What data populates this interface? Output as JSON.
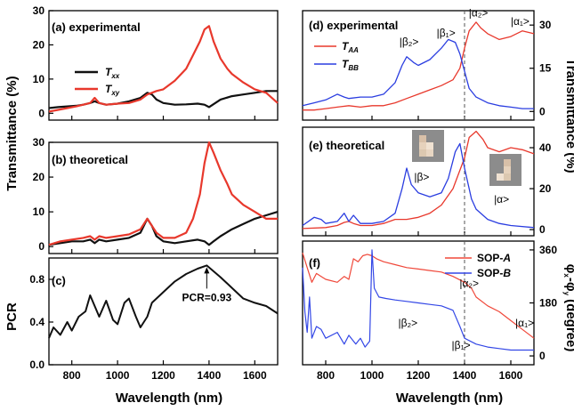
{
  "colors": {
    "black": "#111111",
    "red": "#e8382c",
    "blue": "#2a3de0",
    "thin_red": "#f0483a",
    "thin_blue": "#3347e6",
    "dash": "#555555",
    "inset_bg": "#8c8c8c"
  },
  "shared": {
    "x_axis_title": "Wavelength (nm)",
    "left_y_title": "Transmittance (%)",
    "right_y_title": "Transmittance (%)",
    "pcr_y_title": "PCR",
    "phase_y_title": "φ_x-φ_y (degree)"
  },
  "chart_data": [
    {
      "panel": "a",
      "type": "line",
      "title": "(a) experimental",
      "xlim": [
        700,
        1700
      ],
      "ylim": [
        -2,
        30
      ],
      "yticks": [
        0,
        10,
        20,
        30
      ],
      "series": [
        {
          "name": "T_xx",
          "color_key": "black",
          "x": [
            700,
            740,
            780,
            820,
            850,
            880,
            900,
            920,
            950,
            1000,
            1050,
            1100,
            1130,
            1150,
            1170,
            1200,
            1250,
            1300,
            1350,
            1380,
            1400,
            1450,
            1500,
            1550,
            1600,
            1650,
            1700
          ],
          "y": [
            1.5,
            1.8,
            2.0,
            2.2,
            2.5,
            3.0,
            3.5,
            3.0,
            2.5,
            2.8,
            3.5,
            4.5,
            6.0,
            5.5,
            4.0,
            3.0,
            2.5,
            2.6,
            2.8,
            2.5,
            1.8,
            4.0,
            5.0,
            5.5,
            6.0,
            6.5,
            6.5
          ]
        },
        {
          "name": "T_xy",
          "color_key": "red",
          "x": [
            700,
            740,
            780,
            820,
            850,
            880,
            900,
            920,
            950,
            1000,
            1050,
            1100,
            1130,
            1150,
            1170,
            1200,
            1250,
            1300,
            1330,
            1360,
            1380,
            1400,
            1420,
            1450,
            1480,
            1500,
            1550,
            1600,
            1650,
            1700
          ],
          "y": [
            0.5,
            1.0,
            1.5,
            2.0,
            2.5,
            3.0,
            4.5,
            3.0,
            2.5,
            2.8,
            3.0,
            4.0,
            5.5,
            6.0,
            6.5,
            7.0,
            9.5,
            13.0,
            17.0,
            21.0,
            24.5,
            25.5,
            21.0,
            16.0,
            13.0,
            11.5,
            9.0,
            7.0,
            6.0,
            3.0
          ]
        }
      ],
      "legend": [
        "T_xx",
        "T_xy"
      ]
    },
    {
      "panel": "b",
      "type": "line",
      "title": "(b) theoretical",
      "xlim": [
        700,
        1700
      ],
      "ylim": [
        -2,
        30
      ],
      "yticks": [
        0,
        10,
        20,
        30
      ],
      "series": [
        {
          "name": "T_xx",
          "color_key": "black",
          "x": [
            700,
            750,
            800,
            850,
            880,
            900,
            920,
            950,
            1000,
            1050,
            1100,
            1130,
            1150,
            1170,
            1200,
            1250,
            1300,
            1350,
            1380,
            1400,
            1420,
            1450,
            1500,
            1550,
            1600,
            1650,
            1700
          ],
          "y": [
            0.5,
            1.0,
            1.5,
            1.5,
            2.0,
            1.0,
            2.0,
            1.5,
            2.0,
            2.5,
            4.0,
            8.0,
            6.0,
            3.0,
            1.5,
            1.0,
            1.5,
            2.0,
            1.5,
            0.5,
            1.5,
            3.0,
            5.0,
            6.5,
            8.0,
            9.0,
            10.0
          ]
        },
        {
          "name": "T_xy",
          "color_key": "red",
          "x": [
            700,
            750,
            800,
            850,
            880,
            900,
            920,
            950,
            1000,
            1050,
            1100,
            1130,
            1150,
            1170,
            1200,
            1250,
            1300,
            1330,
            1360,
            1380,
            1400,
            1420,
            1450,
            1480,
            1500,
            1550,
            1600,
            1650,
            1700
          ],
          "y": [
            0.5,
            1.5,
            2.0,
            2.5,
            3.0,
            2.0,
            3.0,
            2.5,
            3.0,
            3.5,
            5.0,
            8.0,
            6.0,
            4.0,
            2.5,
            2.5,
            4.0,
            8.0,
            15.0,
            24.0,
            30.0,
            27.0,
            22.0,
            18.0,
            15.0,
            12.0,
            10.0,
            8.0,
            8.0
          ]
        }
      ]
    },
    {
      "panel": "c",
      "type": "line",
      "title": "(c)",
      "xlim": [
        700,
        1700
      ],
      "ylim": [
        0.0,
        1.0
      ],
      "yticks": [
        0.0,
        0.4,
        0.8
      ],
      "annotation": {
        "text": "PCR=0.93",
        "x": 1390,
        "y": 0.93
      },
      "series": [
        {
          "name": "PCR",
          "color_key": "black",
          "x": [
            700,
            720,
            750,
            780,
            800,
            830,
            860,
            880,
            900,
            920,
            950,
            980,
            1000,
            1030,
            1050,
            1080,
            1100,
            1130,
            1150,
            1200,
            1250,
            1300,
            1350,
            1390,
            1450,
            1500,
            1550,
            1600,
            1650,
            1700
          ],
          "y": [
            0.25,
            0.35,
            0.28,
            0.4,
            0.32,
            0.45,
            0.5,
            0.65,
            0.55,
            0.45,
            0.6,
            0.42,
            0.38,
            0.58,
            0.62,
            0.45,
            0.35,
            0.45,
            0.58,
            0.68,
            0.78,
            0.85,
            0.9,
            0.93,
            0.82,
            0.72,
            0.62,
            0.58,
            0.55,
            0.48
          ]
        }
      ]
    },
    {
      "panel": "d",
      "type": "line",
      "title": "(d) experimental",
      "xlim": [
        700,
        1700
      ],
      "ylim": [
        -3,
        35
      ],
      "yticks": [
        0,
        15,
        30
      ],
      "series": [
        {
          "name": "T_AA",
          "color_key": "red",
          "x": [
            700,
            750,
            800,
            850,
            900,
            950,
            1000,
            1050,
            1100,
            1150,
            1200,
            1250,
            1300,
            1350,
            1380,
            1400,
            1420,
            1450,
            1470,
            1500,
            1550,
            1600,
            1650,
            1700
          ],
          "y": [
            0.5,
            0.5,
            1.0,
            1.5,
            2.0,
            1.5,
            2.0,
            2.0,
            3.0,
            4.5,
            6.0,
            7.5,
            9.0,
            11.0,
            15.0,
            22.0,
            28.0,
            31.0,
            29.0,
            27.0,
            25.0,
            26.0,
            28.0,
            27.0
          ]
        },
        {
          "name": "T_BB",
          "color_key": "blue",
          "x": [
            700,
            750,
            800,
            850,
            880,
            900,
            950,
            1000,
            1050,
            1100,
            1130,
            1150,
            1180,
            1200,
            1250,
            1300,
            1330,
            1360,
            1380,
            1400,
            1420,
            1450,
            1500,
            1550,
            1600,
            1650,
            1700
          ],
          "y": [
            2.0,
            3.0,
            4.0,
            6.0,
            5.0,
            4.5,
            5.0,
            5.0,
            6.0,
            10.0,
            16.0,
            19.0,
            17.0,
            16.0,
            18.0,
            22.0,
            25.0,
            24.0,
            20.0,
            14.0,
            8.0,
            5.0,
            3.0,
            2.0,
            1.5,
            1.0,
            1.0
          ]
        }
      ],
      "legend": [
        "T_AA",
        "T_BB"
      ],
      "state_labels": [
        {
          "text": "|β₂>",
          "x": 1160,
          "y": 23
        },
        {
          "text": "|β₁>",
          "x": 1320,
          "y": 26
        },
        {
          "text": "|α₂>",
          "x": 1460,
          "y": 33
        },
        {
          "text": "|α₁>",
          "x": 1640,
          "y": 30
        }
      ],
      "vline_x": 1400
    },
    {
      "panel": "e",
      "type": "line",
      "title": "(e) theoretical",
      "xlim": [
        700,
        1700
      ],
      "ylim": [
        -3,
        50
      ],
      "yticks": [
        0,
        20,
        40
      ],
      "series": [
        {
          "name": "T_AA",
          "color_key": "red",
          "x": [
            700,
            800,
            850,
            880,
            900,
            920,
            950,
            1000,
            1050,
            1100,
            1150,
            1200,
            1250,
            1300,
            1350,
            1400,
            1420,
            1450,
            1480,
            1500,
            1550,
            1600,
            1650,
            1700
          ],
          "y": [
            0.5,
            1.0,
            2.0,
            3.5,
            4.0,
            3.0,
            2.0,
            2.0,
            3.0,
            5.0,
            5.0,
            6.0,
            8.0,
            12.0,
            20.0,
            35.0,
            45.0,
            48.0,
            44.0,
            40.0,
            38.0,
            40.0,
            39.0,
            37.0
          ]
        },
        {
          "name": "T_BB",
          "color_key": "blue",
          "x": [
            700,
            750,
            780,
            800,
            850,
            880,
            900,
            920,
            950,
            1000,
            1050,
            1100,
            1130,
            1150,
            1170,
            1200,
            1250,
            1300,
            1330,
            1360,
            1380,
            1400,
            1430,
            1450,
            1500,
            1550,
            1600,
            1700
          ],
          "y": [
            2.0,
            6.0,
            5.0,
            3.0,
            4.0,
            8.0,
            4.0,
            7.0,
            3.0,
            3.0,
            4.0,
            8.0,
            20.0,
            30.0,
            22.0,
            18.0,
            16.0,
            18.0,
            25.0,
            38.0,
            42.0,
            30.0,
            15.0,
            10.0,
            5.0,
            3.0,
            2.0,
            1.0
          ]
        }
      ],
      "state_labels": [
        {
          "text": "|β>",
          "x": 1215,
          "y": 24
        },
        {
          "text": "|α>",
          "x": 1560,
          "y": 13
        }
      ],
      "vline_x": 1400
    },
    {
      "panel": "f",
      "type": "line",
      "title": "(f)",
      "xlim": [
        700,
        1700
      ],
      "ylim": [
        -30,
        390
      ],
      "yticks": [
        0,
        180,
        360
      ],
      "series": [
        {
          "name": "SOP-A",
          "color_key": "thin_red",
          "x": [
            700,
            720,
            740,
            760,
            780,
            800,
            850,
            880,
            900,
            920,
            940,
            960,
            980,
            1000,
            1020,
            1050,
            1100,
            1150,
            1200,
            1250,
            1300,
            1350,
            1400,
            1430,
            1450,
            1500,
            1550,
            1600,
            1650,
            1700
          ],
          "y": [
            350,
            300,
            250,
            280,
            270,
            260,
            250,
            270,
            260,
            330,
            320,
            340,
            345,
            340,
            330,
            320,
            310,
            300,
            295,
            290,
            285,
            270,
            250,
            230,
            200,
            170,
            150,
            120,
            90,
            60
          ]
        },
        {
          "name": "SOP-B",
          "color_key": "thin_blue",
          "x": [
            700,
            710,
            720,
            730,
            740,
            760,
            780,
            800,
            850,
            880,
            900,
            930,
            950,
            970,
            990,
            1000,
            1010,
            1030,
            1060,
            1100,
            1150,
            1200,
            1250,
            1300,
            1350,
            1380,
            1400,
            1450,
            1500,
            1550,
            1600,
            1650,
            1700
          ],
          "y": [
            300,
            150,
            80,
            200,
            60,
            100,
            90,
            60,
            80,
            40,
            70,
            40,
            60,
            30,
            50,
            360,
            230,
            200,
            195,
            190,
            185,
            180,
            175,
            170,
            155,
            100,
            60,
            40,
            30,
            25,
            20,
            20,
            20
          ]
        }
      ],
      "legend": [
        "SOP-A",
        "SOP-B"
      ],
      "state_labels": [
        {
          "text": "|β₂>",
          "x": 1155,
          "y": 100
        },
        {
          "text": "|β₁>",
          "x": 1385,
          "y": 25
        },
        {
          "text": "|α₂>",
          "x": 1420,
          "y": 235
        },
        {
          "text": "|α₁>",
          "x": 1660,
          "y": 100
        }
      ],
      "vline_x": 1400
    }
  ],
  "text": {
    "legend_a": [
      "T",
      "xx",
      "T",
      "xy"
    ],
    "legend_d": [
      "T",
      "AA",
      "T",
      "BB"
    ],
    "legend_f": [
      "SOP-",
      "A",
      "SOP-",
      "B"
    ],
    "pcr_anno": "PCR=0.93",
    "beta": "|β>",
    "alpha": "|α>",
    "phase_title_parts": [
      "φ",
      "x",
      "-φ",
      "y",
      " (degree)"
    ]
  }
}
